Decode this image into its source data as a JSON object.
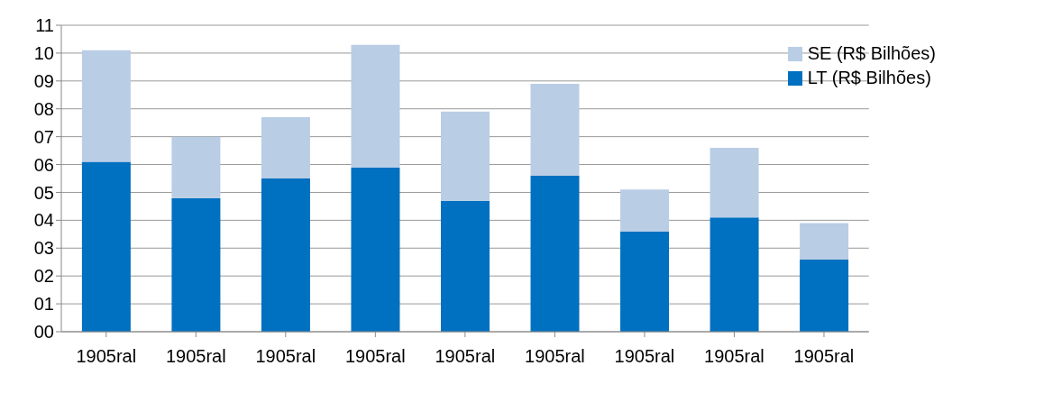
{
  "chart_data": {
    "type": "bar",
    "stacked": true,
    "categories": [
      "1905ral",
      "1905ral",
      "1905ral",
      "1905ral",
      "1905ral",
      "1905ral",
      "1905ral",
      "1905ral",
      "1905ral"
    ],
    "series": [
      {
        "name": "LT (R$ Bilhões)",
        "color": "#0070c0",
        "values": [
          6.1,
          4.8,
          5.5,
          5.9,
          4.7,
          5.6,
          3.6,
          4.1,
          2.6
        ]
      },
      {
        "name": "SE (R$ Bilhões)",
        "color": "#b9cde5",
        "values": [
          4.0,
          2.2,
          2.2,
          4.4,
          3.2,
          3.3,
          1.5,
          2.5,
          1.3
        ]
      }
    ],
    "ylim": [
      0,
      11
    ],
    "yticks": [
      {
        "value": 0,
        "label": "00"
      },
      {
        "value": 1,
        "label": "01"
      },
      {
        "value": 2,
        "label": "02"
      },
      {
        "value": 3,
        "label": "03"
      },
      {
        "value": 4,
        "label": "04"
      },
      {
        "value": 5,
        "label": "05"
      },
      {
        "value": 6,
        "label": "06"
      },
      {
        "value": 7,
        "label": "07"
      },
      {
        "value": 8,
        "label": "08"
      },
      {
        "value": 9,
        "label": "09"
      },
      {
        "value": 10,
        "label": "10"
      },
      {
        "value": 11,
        "label": "11"
      }
    ],
    "grid": "y",
    "legend": "top right"
  }
}
